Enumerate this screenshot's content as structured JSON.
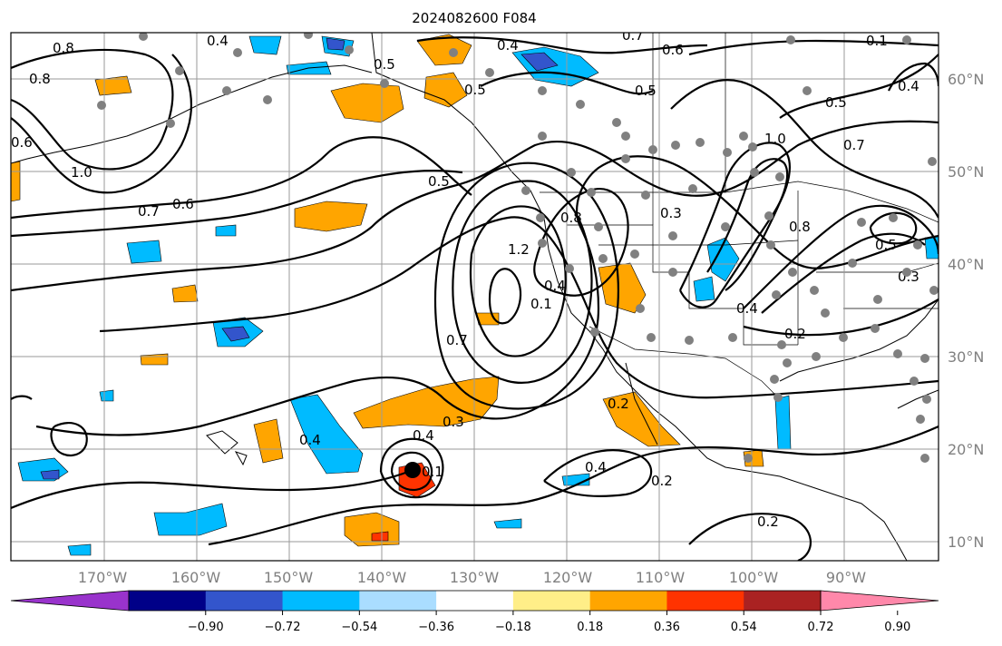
{
  "title": "2024082600 F084",
  "lon_ticks": [
    "170°W",
    "160°W",
    "150°W",
    "140°W",
    "130°W",
    "120°W",
    "110°W",
    "100°W",
    "90°W"
  ],
  "lat_ticks": [
    "60°N",
    "50°N",
    "40°N",
    "30°N",
    "20°N",
    "10°N"
  ],
  "colorbar": {
    "colors": [
      "#9933cc",
      "#000088",
      "#3355cc",
      "#00bbff",
      "#aaddff",
      "#ffffff",
      "#ffee88",
      "#ffa500",
      "#ff3300",
      "#aa2222",
      "#ff88aa"
    ],
    "ticks": [
      "−0.90",
      "−0.72",
      "−0.54",
      "−0.36",
      "−0.18",
      "0.18",
      "0.36",
      "0.54",
      "0.72",
      "0.90"
    ]
  },
  "contour_labels": [
    "0.8",
    "0.8",
    "0.4",
    "0.5",
    "0.4",
    "0.6",
    "0.7",
    "0.1",
    "0.4",
    "0.5",
    "0.5",
    "1.0",
    "0.7",
    "0.7",
    "0.6",
    "0.5",
    "0.3",
    "0.8",
    "1.2",
    "0.1",
    "0.4",
    "0.5",
    "0.5",
    "0.8",
    "0.7",
    "0.3",
    "0.2",
    "0.4",
    "0.4",
    "0.3",
    "0.2",
    "0.4",
    "0.2",
    "0.2",
    "1.0",
    "0.6",
    "0.4",
    "0.1"
  ],
  "markers": {
    "station_color": "#808080"
  }
}
